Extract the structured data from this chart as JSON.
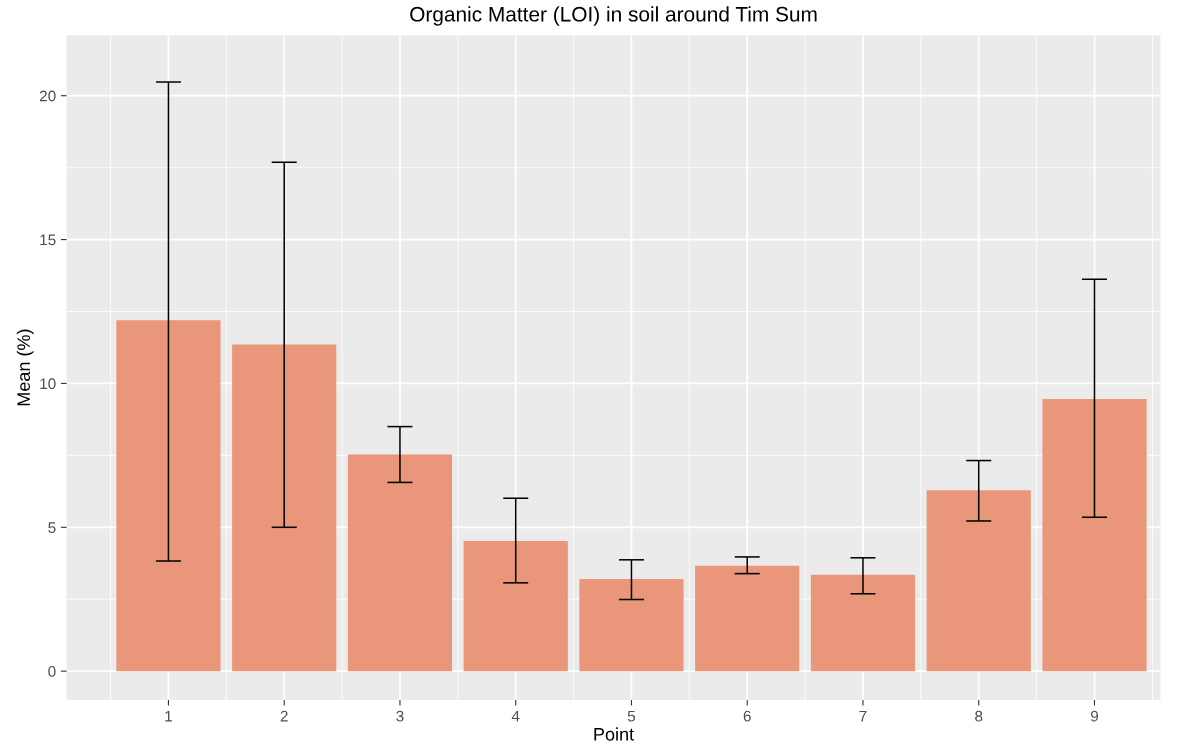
{
  "chart_data": {
    "type": "bar",
    "title": "Organic Matter (LOI) in soil around Tim Sum",
    "xlabel": "Point",
    "ylabel": "Mean (%)",
    "x": [
      1,
      2,
      3,
      4,
      5,
      6,
      7,
      8,
      9
    ],
    "values": [
      12.2,
      11.35,
      7.53,
      4.52,
      3.2,
      3.66,
      3.35,
      6.29,
      9.46
    ],
    "errors": [
      [
        3.83,
        20.48
      ],
      [
        5.0,
        17.69
      ],
      [
        6.56,
        8.5
      ],
      [
        3.07,
        6.01
      ],
      [
        2.49,
        3.87
      ],
      [
        3.39,
        3.97
      ],
      [
        2.69,
        3.94
      ],
      [
        5.22,
        7.32
      ],
      [
        5.35,
        13.62
      ]
    ],
    "color": "#e9967a",
    "xlim": [
      0.12,
      9.57
    ],
    "xticks": [
      1,
      2,
      3,
      4,
      5,
      6,
      7,
      8,
      9
    ],
    "ylim": [
      -1.0,
      22.1
    ],
    "yticks": [
      0,
      5,
      10,
      15,
      20
    ],
    "grid": true
  }
}
